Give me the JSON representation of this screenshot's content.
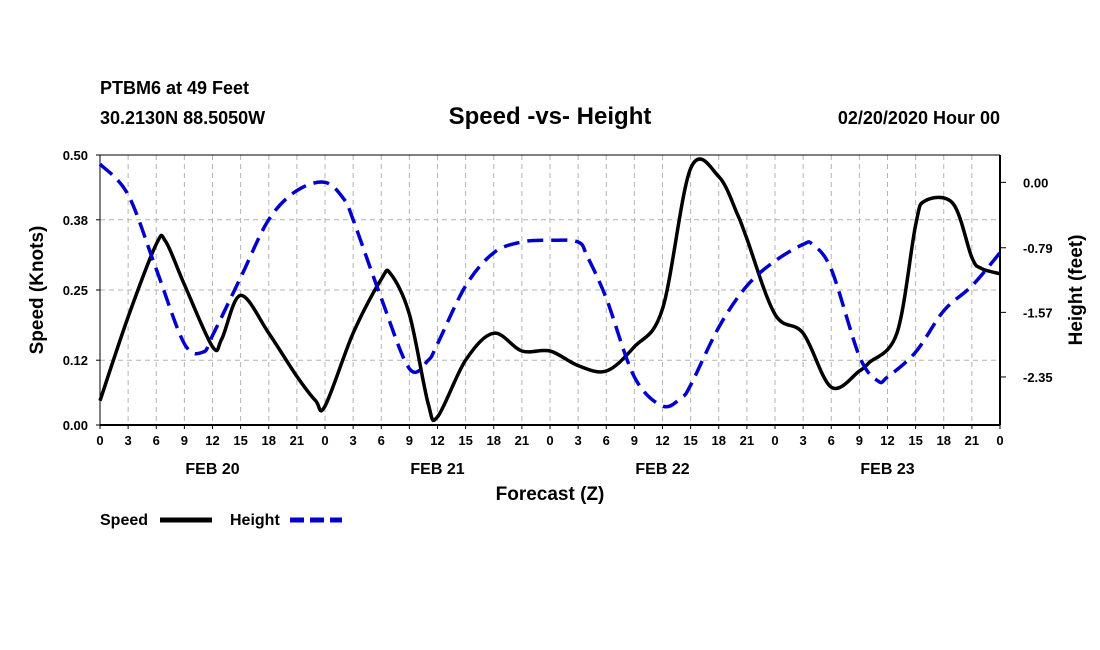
{
  "header": {
    "station": "PTBM6 at 49 Feet",
    "coords": "30.2130N 88.5050W",
    "title": "Speed -vs- Height",
    "datetime": "02/20/2020 Hour 00"
  },
  "chart_data": {
    "type": "line",
    "title": "Speed -vs- Height",
    "xlabel": "Forecast (Z)",
    "ylabel_left": "Speed (Knots)",
    "ylabel_right": "Height (feet)",
    "x_unit": "forecast hour",
    "xlim": [
      0,
      96
    ],
    "x_ticks": [
      0,
      3,
      6,
      9,
      12,
      15,
      18,
      21,
      24,
      27,
      30,
      33,
      36,
      39,
      42,
      45,
      48,
      51,
      54,
      57,
      60,
      63,
      66,
      69,
      72,
      75,
      78,
      81,
      84,
      87,
      90,
      93,
      96
    ],
    "x_tick_labels": [
      "0",
      "3",
      "6",
      "9",
      "12",
      "15",
      "18",
      "21",
      "0",
      "3",
      "6",
      "9",
      "12",
      "15",
      "18",
      "21",
      "0",
      "3",
      "6",
      "9",
      "12",
      "15",
      "18",
      "21",
      "0",
      "3",
      "6",
      "9",
      "12",
      "15",
      "18",
      "21",
      "0"
    ],
    "day_labels": [
      {
        "label": "FEB 20",
        "hour": 12
      },
      {
        "label": "FEB 21",
        "hour": 36
      },
      {
        "label": "FEB 22",
        "hour": 60
      },
      {
        "label": "FEB 23",
        "hour": 84
      }
    ],
    "ylim_left": [
      0,
      0.5
    ],
    "y_ticks_left": [
      0.0,
      0.12,
      0.25,
      0.38,
      0.5
    ],
    "y_tick_labels_left": [
      "0.00",
      "0.12",
      "0.25",
      "0.38",
      "0.50"
    ],
    "ylim_right": [
      -2.93,
      0.33
    ],
    "y_ticks_right": [
      0.0,
      -0.79,
      -1.57,
      -2.35
    ],
    "y_tick_labels_right": [
      "0.00",
      "-0.79",
      "-1.57",
      "-2.35"
    ],
    "grid": true,
    "series": [
      {
        "name": "Speed",
        "axis": "left",
        "color": "#000000",
        "dash": "solid",
        "x": [
          0,
          3,
          6,
          7,
          9,
          12,
          13,
          15,
          18,
          21,
          23,
          24,
          27,
          30,
          31,
          33,
          35,
          36,
          39,
          42,
          45,
          48,
          51,
          54,
          57,
          60,
          63,
          66,
          68,
          69,
          72,
          75,
          78,
          81,
          82,
          85,
          87,
          88,
          91,
          93,
          94,
          96
        ],
        "y": [
          0.045,
          0.2,
          0.335,
          0.34,
          0.26,
          0.145,
          0.16,
          0.24,
          0.17,
          0.09,
          0.045,
          0.035,
          0.17,
          0.27,
          0.28,
          0.205,
          0.04,
          0.015,
          0.12,
          0.17,
          0.137,
          0.137,
          0.11,
          0.1,
          0.145,
          0.215,
          0.475,
          0.46,
          0.39,
          0.345,
          0.205,
          0.17,
          0.07,
          0.1,
          0.115,
          0.17,
          0.37,
          0.415,
          0.41,
          0.31,
          0.29,
          0.28
        ]
      },
      {
        "name": "Height",
        "axis": "right",
        "color": "#0000cc",
        "dash": "dashed",
        "x": [
          0,
          3,
          6,
          9,
          11,
          12,
          15,
          18,
          21,
          24,
          26,
          27,
          30,
          33,
          35,
          36,
          39,
          42,
          45,
          48,
          51,
          52,
          54,
          57,
          60,
          62,
          63,
          66,
          69,
          72,
          75,
          76,
          78,
          81,
          83,
          84,
          87,
          90,
          93,
          96
        ],
        "y": [
          0.22,
          -0.15,
          -1.05,
          -1.95,
          -2.05,
          -1.85,
          -1.15,
          -0.45,
          -0.1,
          0.0,
          -0.2,
          -0.45,
          -1.4,
          -2.25,
          -2.15,
          -1.95,
          -1.25,
          -0.85,
          -0.72,
          -0.7,
          -0.72,
          -0.9,
          -1.4,
          -2.35,
          -2.7,
          -2.6,
          -2.45,
          -1.75,
          -1.25,
          -0.95,
          -0.75,
          -0.75,
          -1.05,
          -2.1,
          -2.4,
          -2.35,
          -2.05,
          -1.55,
          -1.25,
          -0.85
        ]
      }
    ],
    "legend": {
      "placement": "below-left",
      "entries": [
        "Speed",
        "Height"
      ]
    }
  }
}
